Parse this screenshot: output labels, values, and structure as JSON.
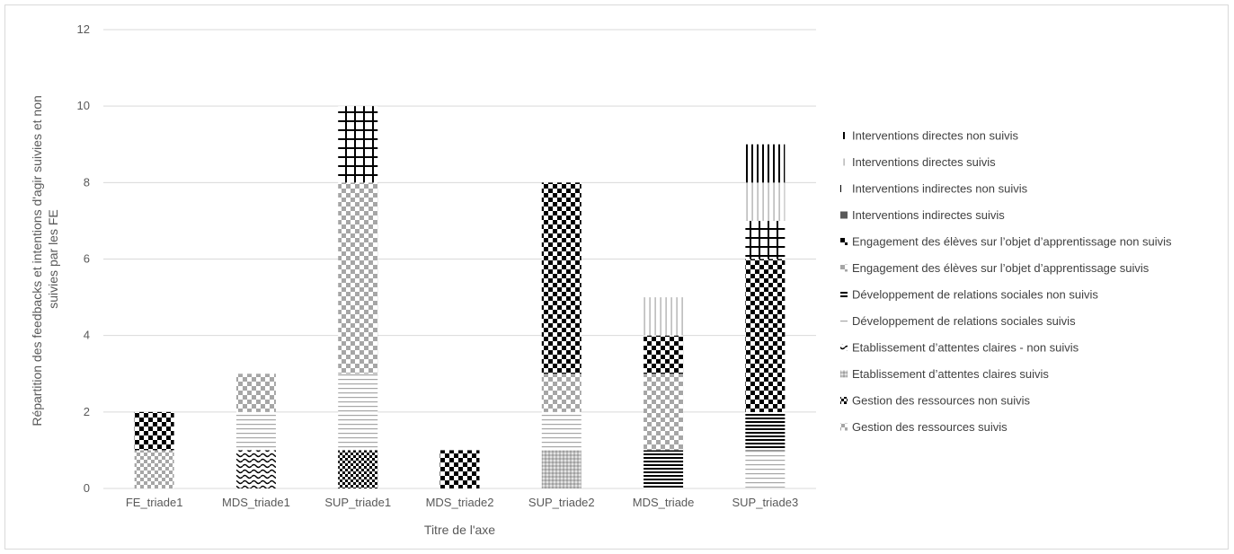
{
  "chart_data": {
    "type": "bar",
    "stacked": true,
    "title": "",
    "xlabel": "Titre de l'axe",
    "ylabel_lines": [
      "Répartition des feedbacks et intentions d'agir suivies et non",
      "suivies par les FE"
    ],
    "ylim": [
      0,
      12
    ],
    "yticks": [
      0,
      2,
      4,
      6,
      8,
      10,
      12
    ],
    "grid": true,
    "legend_position": "right",
    "categories": [
      "FE_triade1",
      "MDS_triade1",
      "SUP_triade1",
      "MDS_triade2",
      "SUP_triade2",
      "MDS_triade",
      "SUP_triade3"
    ],
    "series": [
      {
        "name": "Gestion des ressources suivis",
        "pattern": "checker-gray",
        "values": [
          1,
          0,
          0,
          0,
          0,
          0,
          0
        ]
      },
      {
        "name": "Gestion des ressources non suivis",
        "pattern": "checker-black",
        "values": [
          0,
          0,
          1,
          0,
          0,
          0,
          0
        ]
      },
      {
        "name": "Etablissement d’attentes claires  suivis",
        "pattern": "dots-gray",
        "values": [
          0,
          0,
          0,
          0,
          1,
          0,
          0
        ]
      },
      {
        "name": "Etablissement d’attentes claires - non suivis",
        "pattern": "wave",
        "values": [
          0,
          1,
          0,
          0,
          0,
          0,
          0
        ]
      },
      {
        "name": "Développement de relations sociales suivis",
        "pattern": "hlines-gray",
        "values": [
          0,
          1,
          2,
          0,
          1,
          0,
          1
        ]
      },
      {
        "name": "Développement de relations sociales non suivis",
        "pattern": "hlines-black",
        "values": [
          0,
          0,
          0,
          0,
          0,
          1,
          1
        ]
      },
      {
        "name": "Engagement des élèves sur l’objet d’apprentissage suivis",
        "pattern": "checker-gray-large",
        "values": [
          0,
          1,
          5,
          0,
          1,
          2,
          0
        ]
      },
      {
        "name": "Engagement des élèves sur l’objet d’apprentissage non suivis",
        "pattern": "checker-black-large",
        "values": [
          1,
          0,
          0,
          1,
          5,
          1,
          4
        ]
      },
      {
        "name": "Interventions indirectes suivis",
        "pattern": "solid-gray",
        "values": [
          0,
          0,
          0,
          0,
          0,
          0,
          0
        ]
      },
      {
        "name": "Interventions indirectes non suivis",
        "pattern": "grid-black",
        "values": [
          0,
          0,
          2,
          0,
          0,
          0,
          1
        ]
      },
      {
        "name": "Interventions directes suivis",
        "pattern": "vlines-gray",
        "values": [
          0,
          0,
          0,
          0,
          0,
          1,
          1
        ]
      },
      {
        "name": "Interventions directes non suivis",
        "pattern": "vlines-black",
        "values": [
          0,
          0,
          0,
          0,
          0,
          0,
          1
        ]
      }
    ]
  }
}
